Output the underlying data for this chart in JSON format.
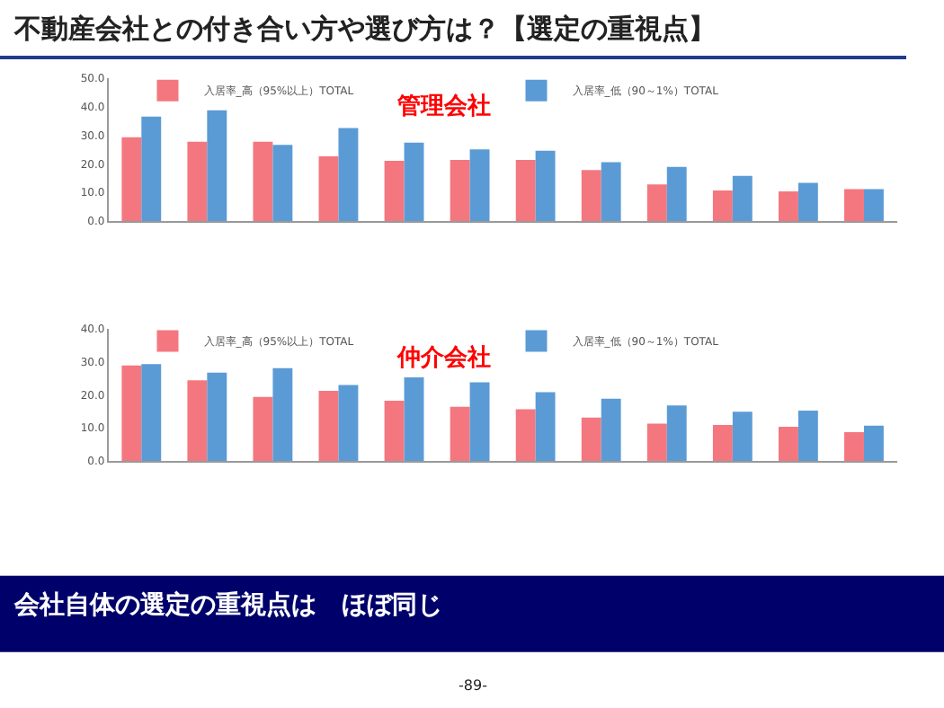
{
  "chart_data": [
    {
      "type": "bar",
      "title": "不動産会社との付き合い方や選び方は？【選定の重視点】",
      "subtitle": "管理会社",
      "categories": [
        null,
        null,
        null,
        null,
        null,
        null,
        null,
        null,
        null,
        null,
        null,
        null
      ],
      "series": [
        {
          "name": "入居率_高（95%以上）TOTAL",
          "color": "#f4777f",
          "values": [
            29.4,
            27.8,
            27.8,
            22.7,
            21.1,
            21.4,
            21.4,
            17.9,
            12.8,
            10.7,
            10.4,
            11.2
          ]
        },
        {
          "name": "入居率_低（90～1%）TOTAL",
          "color": "#5b9bd5",
          "values": [
            36.6,
            38.8,
            26.7,
            32.6,
            27.5,
            25.1,
            24.6,
            20.6,
            19.0,
            15.8,
            13.4,
            11.2
          ]
        }
      ],
      "ylim": [
        0,
        50
      ],
      "yticks": [
        {
          "value": 0,
          "label": "0.0"
        },
        {
          "value": 10,
          "label": "10.0"
        },
        {
          "value": 20,
          "label": "20.0"
        },
        {
          "value": 30,
          "label": "30.0"
        },
        {
          "value": 40,
          "label": "40.0"
        },
        {
          "value": 50,
          "label": "50.0"
        }
      ],
      "grid": false,
      "legend": "top"
    },
    {
      "type": "bar",
      "title": "仲介会社",
      "categories": [
        null,
        null,
        null,
        null,
        null,
        null,
        null,
        null,
        null,
        null,
        null,
        null
      ],
      "series": [
        {
          "name": "入居率_高（95%以上）TOTAL",
          "color": "#f4777f",
          "values": [
            28.9,
            24.4,
            19.4,
            21.2,
            18.2,
            16.4,
            15.6,
            13.1,
            11.3,
            10.9,
            10.3,
            8.7
          ]
        },
        {
          "name": "入居率_低（90～1%）TOTAL",
          "color": "#5b9bd5",
          "values": [
            29.3,
            26.7,
            28.1,
            23.0,
            25.3,
            23.8,
            20.8,
            18.8,
            16.8,
            14.9,
            15.2,
            10.7
          ]
        }
      ],
      "ylim": [
        0,
        40
      ],
      "yticks": [
        {
          "value": 0,
          "label": "0.0"
        },
        {
          "value": 10,
          "label": "10.0"
        },
        {
          "value": 20,
          "label": "20.0"
        },
        {
          "value": 30,
          "label": "30.0"
        },
        {
          "value": 40,
          "label": "40.0"
        }
      ],
      "grid": false,
      "legend": "top",
      "annotations": [
        "会社自体の選定の重視点は　ほぼ同じ",
        "-89-"
      ]
    }
  ]
}
